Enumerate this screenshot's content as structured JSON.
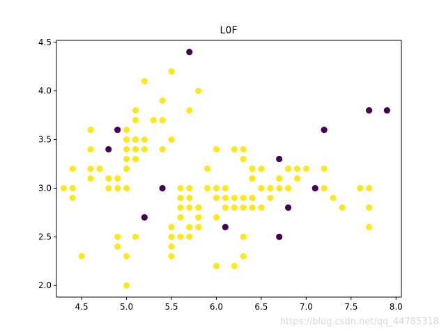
{
  "chart_data": {
    "type": "scatter",
    "title": "LOF",
    "xlabel": "",
    "ylabel": "",
    "xlim": [
      4.22,
      8.06
    ],
    "ylim": [
      1.88,
      4.52
    ],
    "xticks": [
      "4.5",
      "5.0",
      "5.5",
      "6.0",
      "6.5",
      "7.0",
      "7.5",
      "8.0"
    ],
    "yticks": [
      "2.0",
      "2.5",
      "3.0",
      "3.5",
      "4.0",
      "4.5"
    ],
    "grid": false,
    "colors": {
      "inlier": "#fde725",
      "outlier": "#440154"
    },
    "points": [
      [
        4.3,
        3.0,
        1
      ],
      [
        4.4,
        3.0,
        1
      ],
      [
        4.4,
        3.2,
        1
      ],
      [
        4.4,
        2.9,
        1
      ],
      [
        4.5,
        2.3,
        1
      ],
      [
        4.6,
        3.6,
        1
      ],
      [
        4.6,
        3.4,
        1
      ],
      [
        4.6,
        3.2,
        1
      ],
      [
        4.6,
        3.1,
        1
      ],
      [
        4.7,
        3.2,
        1
      ],
      [
        4.8,
        3.4,
        0
      ],
      [
        4.8,
        3.1,
        1
      ],
      [
        4.8,
        3.0,
        1
      ],
      [
        4.9,
        3.6,
        0
      ],
      [
        4.9,
        3.1,
        1
      ],
      [
        4.9,
        3.0,
        1
      ],
      [
        4.9,
        2.5,
        1
      ],
      [
        4.9,
        2.4,
        1
      ],
      [
        5.0,
        3.6,
        1
      ],
      [
        5.0,
        3.5,
        1
      ],
      [
        5.0,
        3.4,
        1
      ],
      [
        5.0,
        3.3,
        1
      ],
      [
        5.0,
        3.2,
        1
      ],
      [
        5.0,
        3.0,
        1
      ],
      [
        5.0,
        2.3,
        1
      ],
      [
        5.0,
        2.0,
        1
      ],
      [
        5.1,
        3.8,
        1
      ],
      [
        5.1,
        3.7,
        1
      ],
      [
        5.1,
        3.5,
        1
      ],
      [
        5.1,
        3.4,
        1
      ],
      [
        5.1,
        3.3,
        1
      ],
      [
        5.1,
        2.5,
        1
      ],
      [
        5.2,
        4.1,
        1
      ],
      [
        5.2,
        3.5,
        1
      ],
      [
        5.2,
        3.4,
        1
      ],
      [
        5.2,
        2.7,
        0
      ],
      [
        5.3,
        3.7,
        1
      ],
      [
        5.4,
        3.9,
        1
      ],
      [
        5.4,
        3.7,
        1
      ],
      [
        5.4,
        3.4,
        1
      ],
      [
        5.4,
        3.0,
        0
      ],
      [
        5.5,
        4.2,
        1
      ],
      [
        5.5,
        3.5,
        1
      ],
      [
        5.5,
        2.6,
        1
      ],
      [
        5.5,
        2.5,
        1
      ],
      [
        5.5,
        2.4,
        1
      ],
      [
        5.5,
        2.3,
        1
      ],
      [
        5.6,
        3.0,
        1
      ],
      [
        5.6,
        2.9,
        1
      ],
      [
        5.6,
        2.8,
        1
      ],
      [
        5.6,
        2.7,
        1
      ],
      [
        5.6,
        2.5,
        1
      ],
      [
        5.7,
        4.4,
        0
      ],
      [
        5.7,
        3.8,
        1
      ],
      [
        5.7,
        3.0,
        1
      ],
      [
        5.7,
        2.9,
        1
      ],
      [
        5.7,
        2.8,
        1
      ],
      [
        5.7,
        2.6,
        1
      ],
      [
        5.7,
        2.5,
        1
      ],
      [
        5.8,
        4.0,
        1
      ],
      [
        5.8,
        2.8,
        1
      ],
      [
        5.8,
        2.7,
        1
      ],
      [
        5.8,
        2.6,
        1
      ],
      [
        5.9,
        3.2,
        1
      ],
      [
        5.9,
        3.0,
        1
      ],
      [
        6.0,
        3.4,
        1
      ],
      [
        6.0,
        3.0,
        1
      ],
      [
        6.0,
        2.9,
        1
      ],
      [
        6.0,
        2.7,
        1
      ],
      [
        6.0,
        2.2,
        1
      ],
      [
        6.1,
        3.0,
        1
      ],
      [
        6.1,
        2.9,
        1
      ],
      [
        6.1,
        2.8,
        1
      ],
      [
        6.1,
        2.6,
        0
      ],
      [
        6.2,
        3.4,
        1
      ],
      [
        6.2,
        2.9,
        1
      ],
      [
        6.2,
        2.8,
        1
      ],
      [
        6.2,
        2.2,
        1
      ],
      [
        6.3,
        3.4,
        1
      ],
      [
        6.3,
        3.3,
        1
      ],
      [
        6.3,
        2.9,
        1
      ],
      [
        6.3,
        2.8,
        1
      ],
      [
        6.3,
        2.5,
        1
      ],
      [
        6.3,
        2.3,
        1
      ],
      [
        6.4,
        3.2,
        1
      ],
      [
        6.4,
        3.1,
        1
      ],
      [
        6.4,
        2.9,
        1
      ],
      [
        6.4,
        2.8,
        1
      ],
      [
        6.5,
        3.2,
        1
      ],
      [
        6.5,
        3.0,
        1
      ],
      [
        6.5,
        2.8,
        1
      ],
      [
        6.6,
        3.0,
        1
      ],
      [
        6.6,
        2.9,
        1
      ],
      [
        6.7,
        3.3,
        0
      ],
      [
        6.7,
        3.1,
        1
      ],
      [
        6.7,
        3.0,
        1
      ],
      [
        6.7,
        2.5,
        0
      ],
      [
        6.8,
        3.2,
        1
      ],
      [
        6.8,
        3.0,
        1
      ],
      [
        6.8,
        2.8,
        0
      ],
      [
        6.9,
        3.2,
        1
      ],
      [
        6.9,
        3.1,
        1
      ],
      [
        7.0,
        3.2,
        1
      ],
      [
        7.1,
        3.0,
        0
      ],
      [
        7.2,
        3.6,
        0
      ],
      [
        7.2,
        3.2,
        1
      ],
      [
        7.2,
        3.0,
        1
      ],
      [
        7.3,
        2.9,
        1
      ],
      [
        7.4,
        2.8,
        1
      ],
      [
        7.6,
        3.0,
        1
      ],
      [
        7.7,
        3.8,
        0
      ],
      [
        7.7,
        3.0,
        1
      ],
      [
        7.7,
        2.8,
        1
      ],
      [
        7.7,
        2.6,
        1
      ],
      [
        7.9,
        3.8,
        0
      ]
    ]
  },
  "watermark": "https://blog.csdn.net/qq_44785318"
}
